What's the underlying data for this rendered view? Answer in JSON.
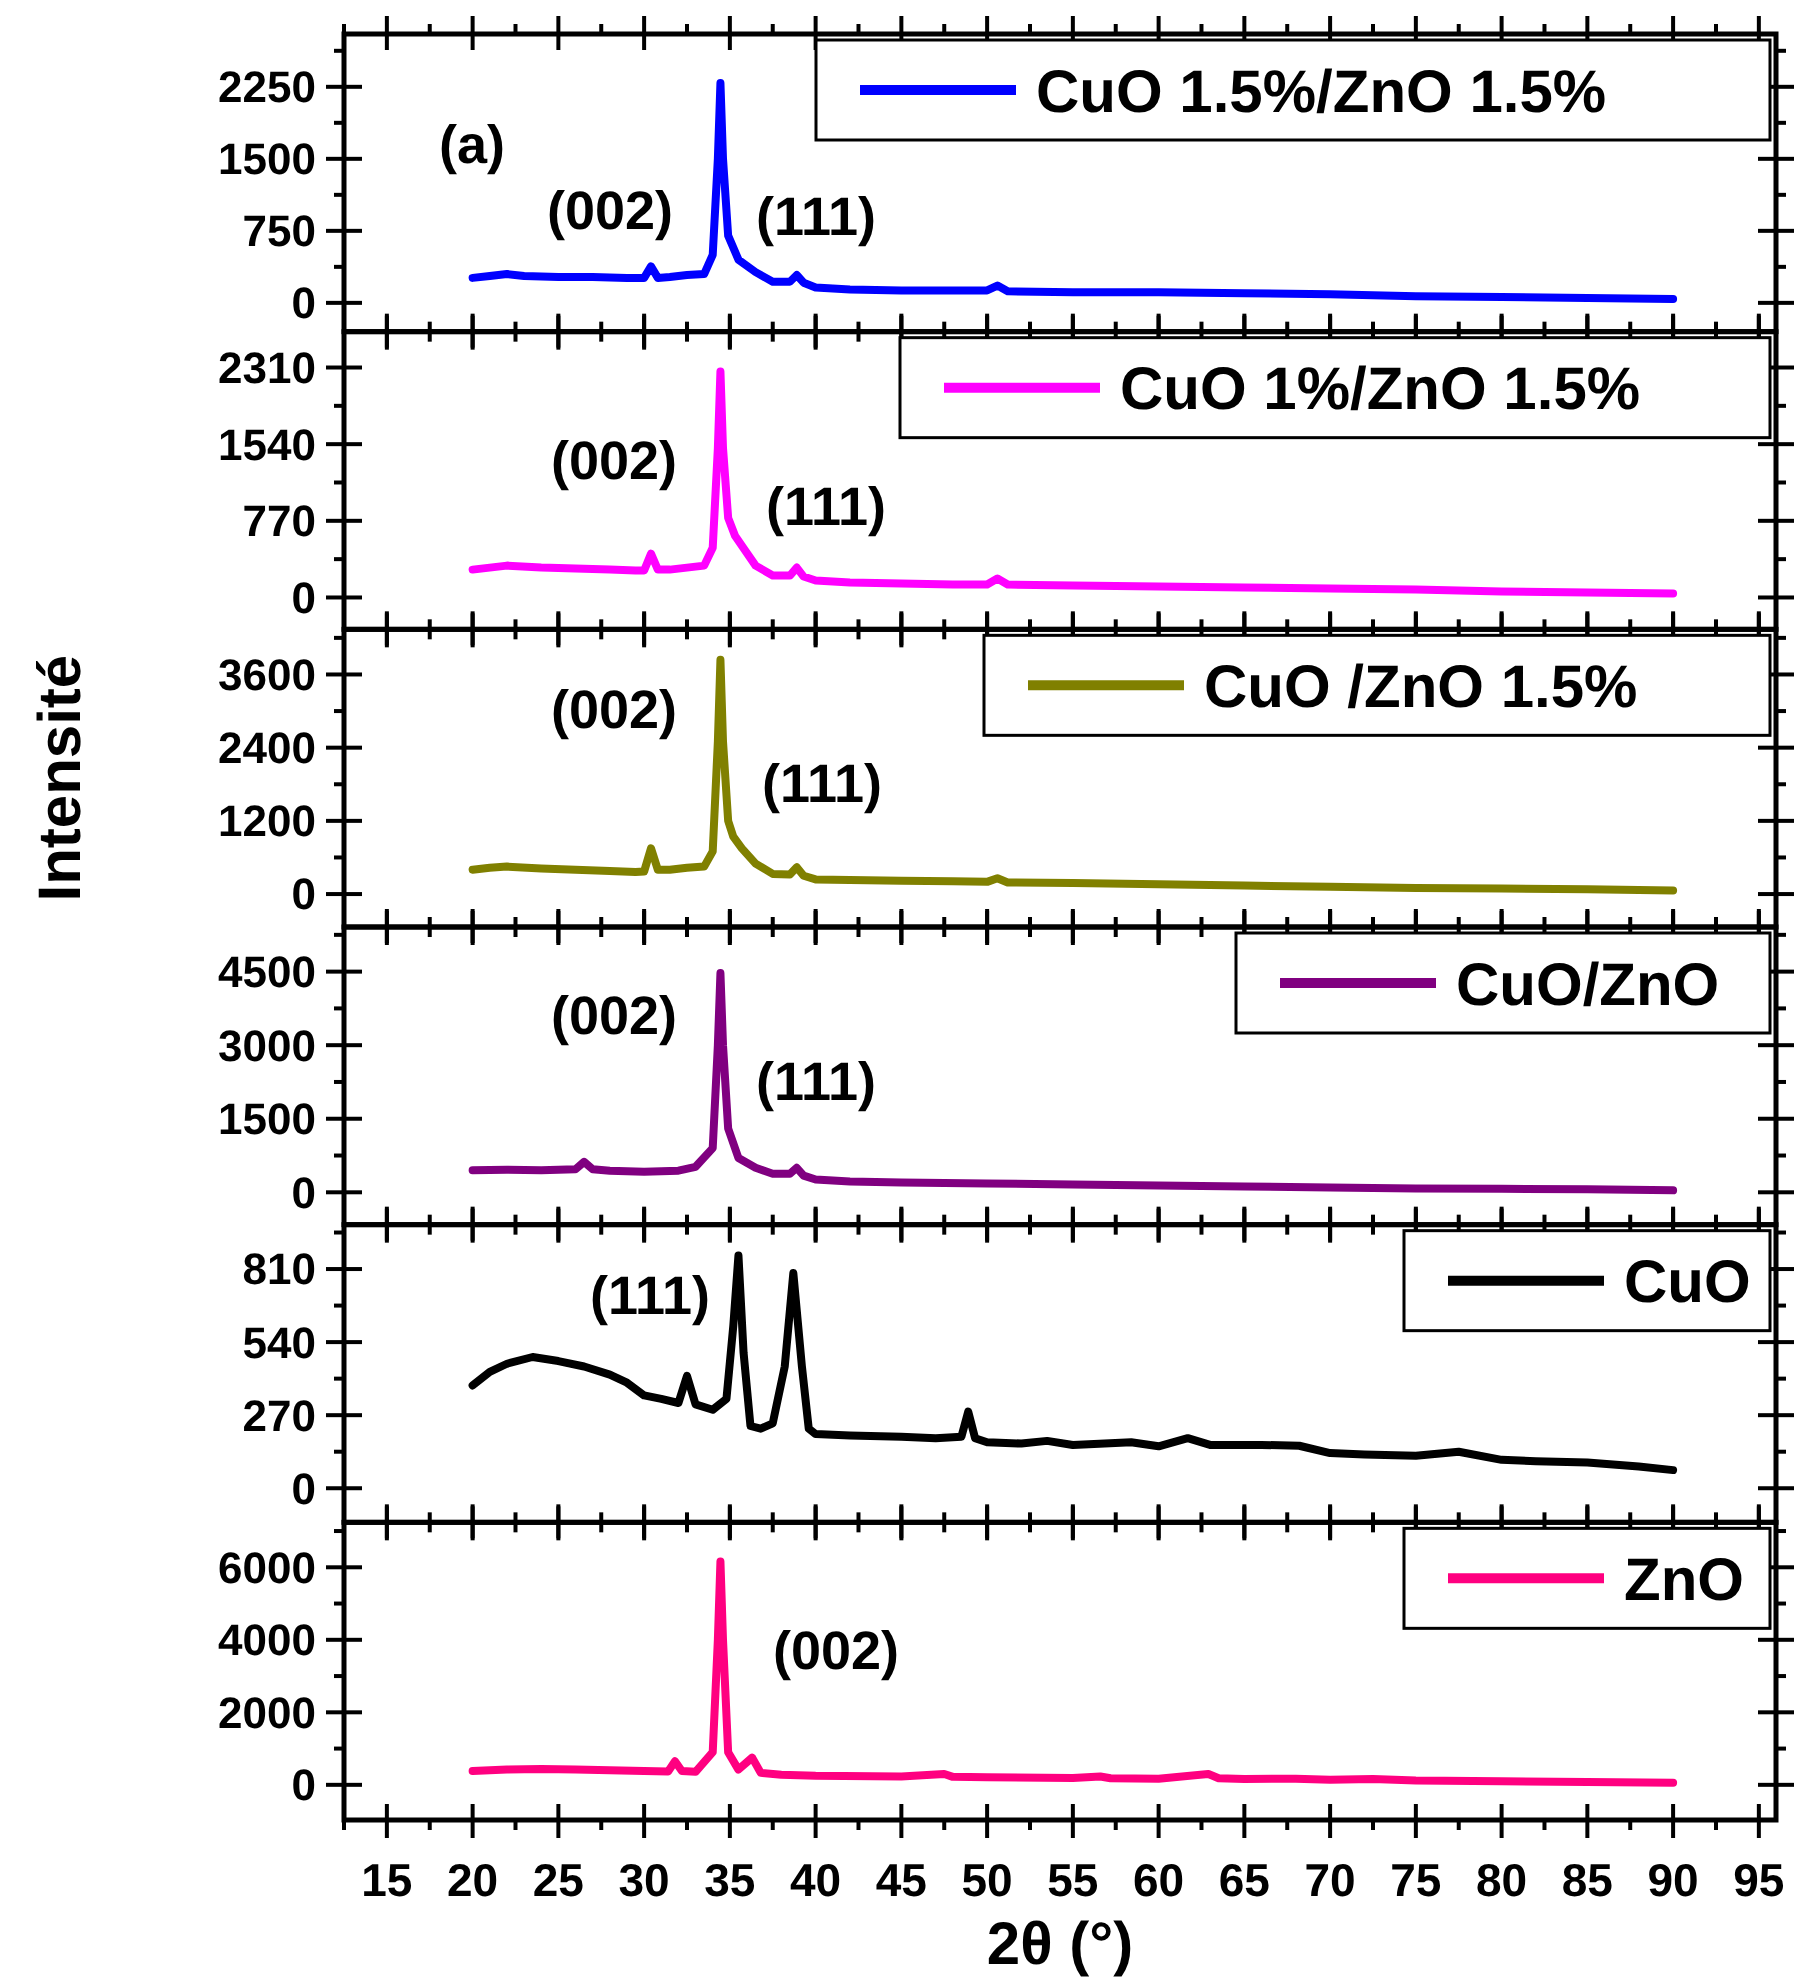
{
  "chart_data": [
    {
      "type": "line",
      "xlim": [
        12.5,
        96
      ],
      "xticks": [
        15,
        20,
        25,
        30,
        35,
        40,
        45,
        50,
        55,
        60,
        65,
        70,
        75,
        80,
        85,
        90,
        95
      ],
      "ylim": [
        -300,
        2800
      ],
      "yticks": [
        0,
        750,
        1500,
        2250
      ],
      "tick_labels": "y",
      "legend": "top right",
      "annotations": [
        "(a)",
        "(002)",
        "(111)"
      ],
      "series": [
        {
          "name": "CuO 1.5%/ZnO 1.5%",
          "color": "#0000ff",
          "x": [
            20,
            21,
            22,
            23,
            25,
            27,
            29,
            30,
            30.4,
            30.8,
            31.5,
            32.5,
            33.5,
            34,
            34.3,
            34.45,
            34.6,
            34.9,
            35.5,
            36.5,
            37.5,
            38.5,
            38.9,
            39.3,
            40,
            42,
            45,
            48,
            50,
            50.6,
            51.2,
            55,
            60,
            65,
            70,
            75,
            80,
            85,
            90
          ],
          "values": [
            260,
            280,
            300,
            280,
            270,
            270,
            260,
            260,
            380,
            260,
            270,
            290,
            300,
            500,
            1500,
            2290,
            1500,
            700,
            450,
            320,
            220,
            220,
            290,
            210,
            160,
            140,
            130,
            130,
            130,
            180,
            120,
            110,
            110,
            100,
            90,
            70,
            60,
            50,
            40
          ]
        }
      ]
    },
    {
      "type": "line",
      "xlim": [
        12.5,
        96
      ],
      "xticks": [
        15,
        20,
        25,
        30,
        35,
        40,
        45,
        50,
        55,
        60,
        65,
        70,
        75,
        80,
        85,
        90,
        95
      ],
      "ylim": [
        -320,
        2670
      ],
      "yticks": [
        0,
        770,
        1540,
        2310
      ],
      "tick_labels": "y",
      "legend": "top right",
      "annotations": [
        "(002)",
        "(111)"
      ],
      "series": [
        {
          "name": "CuO 1%/ZnO 1.5%",
          "color": "#ff00ff",
          "x": [
            20,
            21,
            22,
            24,
            26,
            28,
            29.5,
            30,
            30.4,
            30.8,
            31.5,
            32.5,
            33.5,
            34,
            34.3,
            34.45,
            34.6,
            34.9,
            35.3,
            35.7,
            36.5,
            37.5,
            38.5,
            38.9,
            39.3,
            40,
            42,
            45,
            48,
            50,
            50.6,
            51.2,
            55,
            60,
            65,
            70,
            75,
            80,
            85,
            90
          ],
          "values": [
            280,
            300,
            320,
            300,
            290,
            280,
            270,
            270,
            440,
            280,
            280,
            300,
            320,
            500,
            1500,
            2270,
            1500,
            800,
            620,
            520,
            320,
            220,
            220,
            300,
            210,
            170,
            150,
            140,
            130,
            130,
            190,
            130,
            120,
            110,
            100,
            90,
            80,
            60,
            50,
            40
          ]
        }
      ]
    },
    {
      "type": "line",
      "xlim": [
        12.5,
        96
      ],
      "xticks": [
        15,
        20,
        25,
        30,
        35,
        40,
        45,
        50,
        55,
        60,
        65,
        70,
        75,
        80,
        85,
        90,
        95
      ],
      "ylim": [
        -540,
        4340
      ],
      "ylabel": "Intensité",
      "yticks": [
        0,
        1200,
        2400,
        3600
      ],
      "tick_labels": "y",
      "legend": "top right",
      "annotations": [
        "(002)",
        "(111)"
      ],
      "series": [
        {
          "name": "CuO /ZnO 1.5%",
          "color": "#808000",
          "x": [
            20,
            21,
            22,
            24,
            26,
            28,
            29.5,
            30,
            30.4,
            30.8,
            31.5,
            32.5,
            33.5,
            34,
            34.3,
            34.45,
            34.6,
            34.9,
            35.2,
            35.7,
            36.5,
            37.5,
            38.5,
            38.9,
            39.3,
            40,
            42,
            45,
            48,
            50,
            50.6,
            51.2,
            55,
            60,
            65,
            70,
            75,
            80,
            85,
            90
          ],
          "values": [
            400,
            430,
            450,
            420,
            400,
            380,
            360,
            370,
            750,
            400,
            400,
            430,
            450,
            700,
            2500,
            3840,
            2500,
            1200,
            940,
            750,
            500,
            330,
            320,
            440,
            300,
            240,
            230,
            220,
            210,
            200,
            260,
            190,
            180,
            160,
            140,
            120,
            100,
            90,
            80,
            60
          ]
        }
      ]
    },
    {
      "type": "line",
      "xlim": [
        12.5,
        96
      ],
      "xticks": [
        15,
        20,
        25,
        30,
        35,
        40,
        45,
        50,
        55,
        60,
        65,
        70,
        75,
        80,
        85,
        90,
        95
      ],
      "ylim": [
        -660,
        5410
      ],
      "yticks": [
        0,
        1500,
        3000,
        4500
      ],
      "tick_labels": "y",
      "legend": "top right",
      "annotations": [
        "(002)",
        "(111)"
      ],
      "series": [
        {
          "name": "CuO/ZnO",
          "color": "#800080",
          "x": [
            20,
            22,
            24,
            26,
            26.5,
            27,
            28,
            30,
            32,
            33,
            34,
            34.3,
            34.45,
            34.6,
            34.9,
            35.5,
            36.5,
            37.5,
            38.5,
            38.9,
            39.3,
            40,
            42,
            45,
            50,
            55,
            60,
            65,
            70,
            75,
            80,
            85,
            90
          ],
          "values": [
            450,
            460,
            450,
            470,
            620,
            470,
            440,
            420,
            440,
            520,
            900,
            3000,
            4470,
            3000,
            1300,
            700,
            500,
            380,
            380,
            500,
            340,
            260,
            220,
            200,
            180,
            160,
            140,
            120,
            100,
            80,
            70,
            60,
            40
          ]
        }
      ]
    },
    {
      "type": "line",
      "xlim": [
        12.5,
        96
      ],
      "xticks": [
        15,
        20,
        25,
        30,
        35,
        40,
        45,
        50,
        55,
        60,
        65,
        70,
        75,
        80,
        85,
        90,
        95
      ],
      "ylim": [
        -126,
        974
      ],
      "yticks": [
        0,
        270,
        540,
        810
      ],
      "tick_labels": "y",
      "legend": "top right",
      "annotations": [
        "(111)"
      ],
      "series": [
        {
          "name": "CuO",
          "color": "#000000",
          "x": [
            20,
            21,
            22,
            23.5,
            25,
            26.5,
            28,
            29,
            30,
            31,
            32,
            32.5,
            33,
            34,
            34.8,
            35.2,
            35.5,
            35.8,
            36.2,
            36.8,
            37.5,
            38.2,
            38.7,
            39.2,
            39.6,
            40,
            42,
            45,
            47,
            48.5,
            48.9,
            49.3,
            50,
            52,
            53.5,
            55,
            58.4,
            60,
            61.7,
            63,
            66,
            68.2,
            70,
            72,
            75,
            77.5,
            80,
            82,
            85,
            88,
            90
          ],
          "values": [
            380,
            430,
            460,
            485,
            470,
            450,
            420,
            390,
            343,
            330,
            315,
            415,
            310,
            290,
            330,
            600,
            860,
            500,
            230,
            220,
            240,
            450,
            795,
            450,
            220,
            200,
            195,
            190,
            185,
            190,
            283,
            185,
            170,
            165,
            175,
            160,
            170,
            155,
            185,
            160,
            160,
            157,
            130,
            125,
            120,
            135,
            105,
            100,
            95,
            80,
            67
          ]
        }
      ]
    },
    {
      "type": "line",
      "xlabel": "2θ (°)",
      "xlim": [
        12.5,
        96
      ],
      "xticks": [
        15,
        20,
        25,
        30,
        35,
        40,
        45,
        50,
        55,
        60,
        65,
        70,
        75,
        80,
        85,
        90,
        95
      ],
      "ylim": [
        -970,
        7240
      ],
      "yticks": [
        0,
        2000,
        4000,
        6000
      ],
      "legend": "top right",
      "annotations": [
        "(002)"
      ],
      "series": [
        {
          "name": "ZnO",
          "color": "#ff0080",
          "x": [
            20,
            22,
            24,
            26,
            28,
            30,
            31.4,
            31.8,
            32.2,
            33,
            34,
            34.3,
            34.45,
            34.6,
            34.9,
            35.5,
            36.3,
            36.8,
            38,
            40,
            45,
            47.5,
            48,
            50,
            55,
            56.6,
            57.2,
            60,
            62.9,
            63.5,
            65,
            68,
            70,
            72.5,
            75,
            80,
            85,
            90
          ],
          "values": [
            380,
            420,
            440,
            420,
            400,
            380,
            370,
            650,
            380,
            360,
            900,
            4000,
            6160,
            4000,
            900,
            420,
            750,
            330,
            280,
            250,
            230,
            300,
            220,
            210,
            190,
            230,
            180,
            170,
            300,
            180,
            160,
            170,
            140,
            160,
            120,
            100,
            80,
            60
          ]
        }
      ]
    }
  ]
}
